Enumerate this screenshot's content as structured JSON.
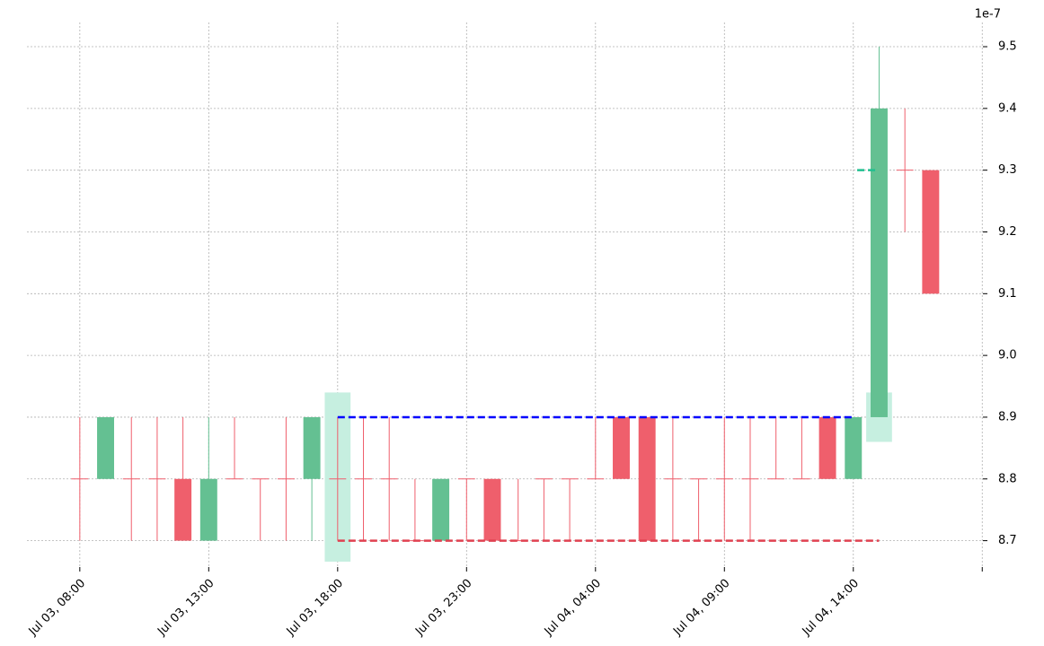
{
  "chart_data": {
    "type": "candlestick",
    "offset_label": "1e-7",
    "categories": [
      "Jul 03, 08:00",
      null,
      null,
      null,
      null,
      "Jul 03, 13:00",
      null,
      null,
      null,
      null,
      "Jul 03, 18:00",
      null,
      null,
      null,
      null,
      "Jul 03, 23:00",
      null,
      null,
      null,
      null,
      "Jul 04, 04:00",
      null,
      null,
      null,
      null,
      "Jul 04, 09:00",
      null,
      null,
      null,
      null,
      "Jul 04, 14:00",
      null,
      null,
      null
    ],
    "open": [
      8.8,
      8.8,
      8.8,
      8.8,
      8.8,
      8.7,
      8.8,
      8.8,
      8.8,
      8.8,
      8.8,
      8.8,
      8.8,
      8.7,
      8.7,
      8.8,
      8.8,
      8.7,
      8.8,
      8.8,
      8.8,
      8.9,
      8.9,
      8.8,
      8.8,
      8.8,
      8.8,
      8.8,
      8.8,
      8.9,
      8.8,
      8.9,
      9.3,
      9.3
    ],
    "high": [
      8.9,
      8.9,
      8.9,
      8.9,
      8.9,
      8.9,
      8.9,
      8.8,
      8.9,
      8.9,
      8.9,
      8.9,
      8.9,
      8.8,
      8.8,
      8.8,
      8.8,
      8.8,
      8.8,
      8.8,
      8.9,
      8.9,
      8.9,
      8.9,
      8.8,
      8.9,
      8.9,
      8.9,
      8.9,
      8.9,
      8.9,
      9.5,
      9.4,
      9.3
    ],
    "low": [
      8.7,
      8.8,
      8.7,
      8.7,
      8.7,
      8.7,
      8.8,
      8.7,
      8.7,
      8.7,
      8.7,
      8.7,
      8.7,
      8.7,
      8.7,
      8.7,
      8.7,
      8.7,
      8.7,
      8.7,
      8.8,
      8.8,
      8.7,
      8.7,
      8.7,
      8.7,
      8.7,
      8.8,
      8.8,
      8.8,
      8.8,
      8.9,
      9.2,
      9.1
    ],
    "close": [
      8.8,
      8.9,
      8.8,
      8.8,
      8.7,
      8.8,
      8.8,
      8.8,
      8.8,
      8.9,
      8.8,
      8.8,
      8.8,
      8.7,
      8.8,
      8.8,
      8.7,
      8.7,
      8.8,
      8.8,
      8.8,
      8.8,
      8.7,
      8.8,
      8.8,
      8.8,
      8.8,
      8.8,
      8.8,
      8.8,
      8.9,
      9.4,
      9.3,
      9.1
    ],
    "up_color": "#64c092",
    "down_color": "#ef5f6c",
    "xlim": [
      -2.05,
      35.2
    ],
    "xticks": [
      0,
      5,
      10,
      15,
      20,
      25,
      30,
      35
    ],
    "ylim": [
      8.666,
      9.532
    ],
    "yticks": [
      8.7,
      8.8,
      8.9,
      {
        "value": 9,
        "label": "9.0"
      },
      9.1,
      9.2,
      9.3,
      9.4,
      9.5
    ],
    "grid": true,
    "levels": [
      {
        "y": 8.9,
        "x": [
          10,
          30
        ],
        "color": "#0000ff"
      },
      {
        "y": 8.7,
        "x": [
          10,
          31
        ],
        "color": "#e04050"
      },
      {
        "y": 9.3,
        "x": [
          30.15,
          30.85
        ],
        "color": "#20c090"
      }
    ],
    "highlights": [
      {
        "x": 10,
        "y": [
          8.666,
          8.94
        ],
        "color": "#c6efe0"
      },
      {
        "x": 31,
        "y": [
          8.86,
          8.94
        ],
        "color": "#c6efe0"
      }
    ]
  }
}
